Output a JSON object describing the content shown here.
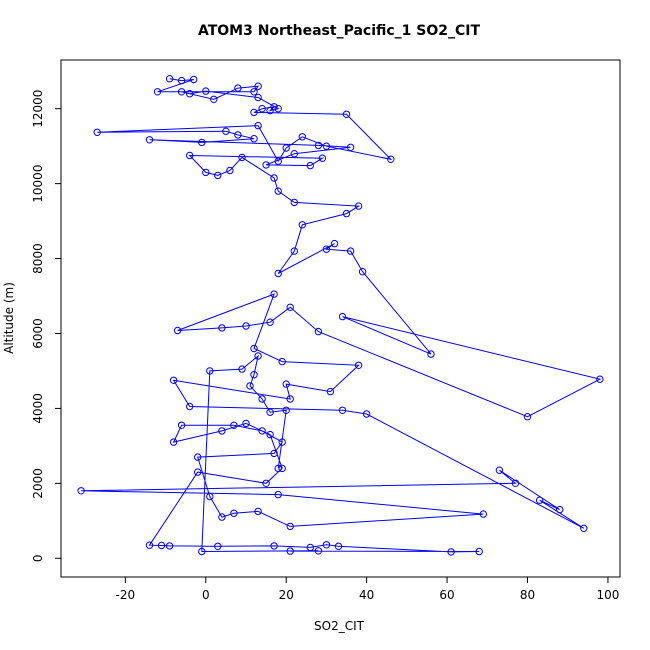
{
  "chart_data": {
    "type": "scatter",
    "title": "ATOM3 Northeast_Pacific_1 SO2_CIT",
    "xlabel": "SO2_CIT",
    "ylabel": "Altitude (m)",
    "xlim": [
      -36,
      103
    ],
    "ylim": [
      -500,
      13300
    ],
    "xticks": [
      -20,
      0,
      20,
      40,
      60,
      80,
      100
    ],
    "yticks": [
      0,
      2000,
      4000,
      6000,
      8000,
      10000,
      12000
    ],
    "grid": false,
    "line_color": "#0000ff",
    "marker": "open-circle",
    "series": [
      {
        "values": [
          {
            "x": -9,
            "y": 12800
          },
          {
            "x": -6,
            "y": 12750
          },
          {
            "x": -3,
            "y": 12780
          },
          {
            "x": -12,
            "y": 12450
          },
          {
            "x": 12,
            "y": 12450
          },
          {
            "x": 13,
            "y": 12600
          },
          {
            "x": 8,
            "y": 12550
          },
          {
            "x": 2,
            "y": 12250
          },
          {
            "x": -6,
            "y": 12450
          },
          {
            "x": -4,
            "y": 12400
          },
          {
            "x": 0,
            "y": 12470
          },
          {
            "x": 13,
            "y": 12300
          },
          {
            "x": 18,
            "y": 12000
          },
          {
            "x": 16,
            "y": 11950
          },
          {
            "x": 17,
            "y": 12050
          },
          {
            "x": 14,
            "y": 12000
          },
          {
            "x": 12,
            "y": 11900
          },
          {
            "x": 35,
            "y": 11850
          },
          {
            "x": 46,
            "y": 10650
          },
          {
            "x": 30,
            "y": 11000
          },
          {
            "x": 24,
            "y": 11250
          },
          {
            "x": 20,
            "y": 10950
          },
          {
            "x": 18,
            "y": 10600
          },
          {
            "x": 13,
            "y": 11550
          },
          {
            "x": -27,
            "y": 11370
          },
          {
            "x": 5,
            "y": 11400
          },
          {
            "x": 8,
            "y": 11300
          },
          {
            "x": 12,
            "y": 11200
          },
          {
            "x": -1,
            "y": 11100
          },
          {
            "x": -14,
            "y": 11170
          },
          {
            "x": 28,
            "y": 11020
          },
          {
            "x": 36,
            "y": 10970
          },
          {
            "x": 22,
            "y": 10800
          },
          {
            "x": 15,
            "y": 10500
          },
          {
            "x": 26,
            "y": 10480
          },
          {
            "x": 29,
            "y": 10680
          },
          {
            "x": -4,
            "y": 10750
          },
          {
            "x": 0,
            "y": 10300
          },
          {
            "x": 3,
            "y": 10220
          },
          {
            "x": 6,
            "y": 10350
          },
          {
            "x": 9,
            "y": 10700
          },
          {
            "x": 17,
            "y": 10150
          },
          {
            "x": 18,
            "y": 9800
          },
          {
            "x": 22,
            "y": 9500
          },
          {
            "x": 38,
            "y": 9400
          },
          {
            "x": 35,
            "y": 9200
          },
          {
            "x": 24,
            "y": 8900
          },
          {
            "x": 22,
            "y": 8200
          },
          {
            "x": 18,
            "y": 7600
          },
          {
            "x": 32,
            "y": 8400
          },
          {
            "x": 30,
            "y": 8250
          },
          {
            "x": 36,
            "y": 8200
          },
          {
            "x": 39,
            "y": 7650
          },
          {
            "x": 56,
            "y": 5450
          },
          {
            "x": 34,
            "y": 6450
          },
          {
            "x": 98,
            "y": 4780
          },
          {
            "x": 80,
            "y": 3780
          },
          {
            "x": 28,
            "y": 6050
          },
          {
            "x": 21,
            "y": 6700
          },
          {
            "x": 16,
            "y": 6300
          },
          {
            "x": 10,
            "y": 6200
          },
          {
            "x": 4,
            "y": 6150
          },
          {
            "x": -7,
            "y": 6080
          },
          {
            "x": 17,
            "y": 7050
          },
          {
            "x": 12,
            "y": 5600
          },
          {
            "x": 19,
            "y": 5250
          },
          {
            "x": 38,
            "y": 5150
          },
          {
            "x": 31,
            "y": 4450
          },
          {
            "x": 20,
            "y": 4650
          },
          {
            "x": 21,
            "y": 4250
          },
          {
            "x": -8,
            "y": 4750
          },
          {
            "x": -4,
            "y": 4050
          },
          {
            "x": 34,
            "y": 3950
          },
          {
            "x": 40,
            "y": 3850
          },
          {
            "x": 94,
            "y": 800
          },
          {
            "x": 83,
            "y": 1550
          },
          {
            "x": 88,
            "y": 1300
          },
          {
            "x": 73,
            "y": 2350
          },
          {
            "x": 77,
            "y": 2000
          },
          {
            "x": -31,
            "y": 1800
          },
          {
            "x": 18,
            "y": 1700
          },
          {
            "x": 69,
            "y": 1180
          },
          {
            "x": 21,
            "y": 850
          },
          {
            "x": 13,
            "y": 1250
          },
          {
            "x": 7,
            "y": 1200
          },
          {
            "x": 4,
            "y": 1100
          },
          {
            "x": 1,
            "y": 1650
          },
          {
            "x": -2,
            "y": 2700
          },
          {
            "x": 17,
            "y": 2800
          },
          {
            "x": 19,
            "y": 3100
          },
          {
            "x": 14,
            "y": 3400
          },
          {
            "x": 7,
            "y": 3550
          },
          {
            "x": -6,
            "y": 3550
          },
          {
            "x": -8,
            "y": 3100
          },
          {
            "x": 4,
            "y": 3400
          },
          {
            "x": 10,
            "y": 3600
          },
          {
            "x": 16,
            "y": 3300
          },
          {
            "x": 19,
            "y": 2400
          },
          {
            "x": 15,
            "y": 2000
          },
          {
            "x": -2,
            "y": 2300
          },
          {
            "x": -14,
            "y": 350
          },
          {
            "x": -11,
            "y": 340
          },
          {
            "x": -9,
            "y": 330
          },
          {
            "x": 3,
            "y": 320
          },
          {
            "x": 17,
            "y": 330
          },
          {
            "x": 26,
            "y": 290
          },
          {
            "x": 30,
            "y": 360
          },
          {
            "x": 33,
            "y": 320
          },
          {
            "x": 61,
            "y": 170
          },
          {
            "x": 68,
            "y": 180
          },
          {
            "x": 21,
            "y": 190
          },
          {
            "x": 28,
            "y": 200
          },
          {
            "x": -1,
            "y": 180
          },
          {
            "x": 1,
            "y": 5000
          },
          {
            "x": 9,
            "y": 5050
          },
          {
            "x": 13,
            "y": 5400
          },
          {
            "x": 12,
            "y": 4900
          },
          {
            "x": 11,
            "y": 4600
          },
          {
            "x": 14,
            "y": 4250
          },
          {
            "x": 16,
            "y": 3900
          },
          {
            "x": 20,
            "y": 3950
          },
          {
            "x": 18,
            "y": 2400
          }
        ]
      }
    ]
  }
}
